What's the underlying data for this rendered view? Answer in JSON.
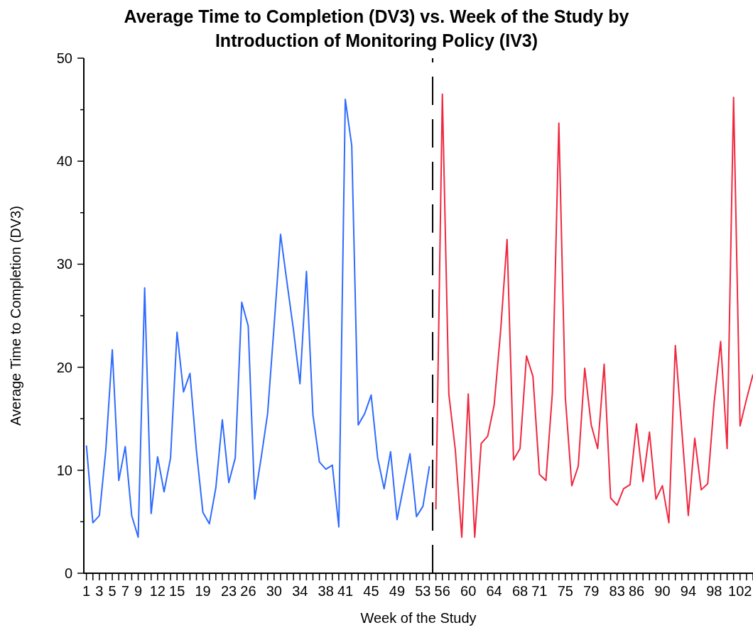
{
  "chart_data": {
    "type": "line",
    "title": "Average Time to Completion (DV3) vs. Week of the Study by Introduction of Monitoring Policy (IV3)",
    "xlabel": "Week of the Study",
    "ylabel": "Average Time to Completion (DV3)",
    "series": [
      {
        "color": "#2f6bff",
        "line_style": "solid",
        "x": [
          1,
          2,
          3,
          4,
          5,
          6,
          7,
          8,
          9,
          10,
          11,
          12,
          13,
          14,
          15,
          16,
          17,
          18,
          19,
          20,
          21,
          22,
          23,
          24,
          25,
          26,
          27,
          28,
          29,
          30,
          31,
          32,
          33,
          34,
          35,
          36,
          37,
          38,
          39,
          40,
          41,
          42,
          43,
          44,
          45,
          46,
          47,
          48,
          49,
          50,
          51,
          52,
          53,
          54
        ],
        "values": [
          12.4,
          4.9,
          5.6,
          12.0,
          21.7,
          9.0,
          12.3,
          5.6,
          3.5,
          27.7,
          5.8,
          11.3,
          7.9,
          11.2,
          23.4,
          17.6,
          19.4,
          11.9,
          5.9,
          4.8,
          8.3,
          14.9,
          8.8,
          11.2,
          26.3,
          24.0,
          7.2,
          11.2,
          15.5,
          24.0,
          32.9,
          28.2,
          23.6,
          18.4,
          29.3,
          15.4,
          10.8,
          10.1,
          10.5,
          4.5,
          46.0,
          41.5,
          14.4,
          15.5,
          17.3,
          11.2,
          8.2,
          11.8,
          5.2,
          8.4,
          11.6,
          5.5,
          6.5,
          10.4
        ]
      },
      {
        "color": "#f0283f",
        "line_style": "solid",
        "x": [
          55,
          56,
          57,
          58,
          59,
          60,
          61,
          62,
          63,
          64,
          65,
          66,
          67,
          68,
          69,
          70,
          71,
          72,
          73,
          74,
          75,
          76,
          77,
          78,
          79,
          80,
          81,
          82,
          83,
          84,
          85,
          86,
          87,
          88,
          89,
          90,
          91,
          92,
          93,
          94,
          95,
          96,
          97,
          98,
          99,
          100,
          101,
          102,
          103,
          104
        ],
        "values": [
          6.2,
          46.5,
          17.4,
          12.0,
          3.5,
          17.4,
          3.5,
          12.6,
          13.3,
          16.3,
          23.5,
          32.4,
          11.0,
          12.1,
          21.1,
          19.1,
          9.6,
          9.0,
          17.5,
          43.7,
          17.1,
          8.5,
          10.4,
          19.9,
          14.4,
          12.1,
          20.3,
          7.3,
          6.6,
          8.2,
          8.6,
          14.5,
          8.9,
          13.7,
          7.2,
          8.5,
          4.9,
          22.1,
          13.9,
          5.6,
          13.1,
          8.1,
          8.7,
          16.6,
          22.5,
          12.1,
          46.2,
          14.3,
          16.9,
          19.3
        ]
      }
    ],
    "xlim": [
      0.6,
      104
    ],
    "xticks": [
      1,
      {
        "value": 2,
        "label": null
      },
      3,
      {
        "value": 4,
        "label": null
      },
      5,
      {
        "value": 6,
        "label": null
      },
      7,
      {
        "value": 8,
        "label": null
      },
      9,
      {
        "value": 10,
        "label": null
      },
      {
        "value": 11,
        "label": null
      },
      12,
      {
        "value": 13,
        "label": null
      },
      {
        "value": 14,
        "label": null
      },
      15,
      {
        "value": 16,
        "label": null
      },
      {
        "value": 17,
        "label": null
      },
      {
        "value": 18,
        "label": null
      },
      19,
      {
        "value": 20,
        "label": null
      },
      {
        "value": 21,
        "label": null
      },
      {
        "value": 22,
        "label": null
      },
      23,
      {
        "value": 24,
        "label": null
      },
      {
        "value": 25,
        "label": null
      },
      26,
      {
        "value": 27,
        "label": null
      },
      {
        "value": 28,
        "label": null
      },
      {
        "value": 29,
        "label": null
      },
      30,
      {
        "value": 31,
        "label": null
      },
      {
        "value": 32,
        "label": null
      },
      {
        "value": 33,
        "label": null
      },
      34,
      {
        "value": 35,
        "label": null
      },
      {
        "value": 36,
        "label": null
      },
      {
        "value": 37,
        "label": null
      },
      38,
      {
        "value": 39,
        "label": null
      },
      {
        "value": 40,
        "label": null
      },
      41,
      {
        "value": 42,
        "label": null
      },
      {
        "value": 43,
        "label": null
      },
      {
        "value": 44,
        "label": null
      },
      45,
      {
        "value": 46,
        "label": null
      },
      {
        "value": 47,
        "label": null
      },
      {
        "value": 48,
        "label": null
      },
      49,
      {
        "value": 50,
        "label": null
      },
      {
        "value": 51,
        "label": null
      },
      {
        "value": 52,
        "label": null
      },
      53,
      {
        "value": 54,
        "label": null
      },
      {
        "value": 55,
        "label": null
      },
      56,
      {
        "value": 57,
        "label": null
      },
      {
        "value": 58,
        "label": null
      },
      {
        "value": 59,
        "label": null
      },
      60,
      {
        "value": 61,
        "label": null
      },
      {
        "value": 62,
        "label": null
      },
      {
        "value": 63,
        "label": null
      },
      64,
      {
        "value": 65,
        "label": null
      },
      {
        "value": 66,
        "label": null
      },
      {
        "value": 67,
        "label": null
      },
      68,
      {
        "value": 69,
        "label": null
      },
      {
        "value": 70,
        "label": null
      },
      71,
      {
        "value": 72,
        "label": null
      },
      {
        "value": 73,
        "label": null
      },
      {
        "value": 74,
        "label": null
      },
      75,
      {
        "value": 76,
        "label": null
      },
      {
        "value": 77,
        "label": null
      },
      {
        "value": 78,
        "label": null
      },
      79,
      {
        "value": 80,
        "label": null
      },
      {
        "value": 81,
        "label": null
      },
      {
        "value": 82,
        "label": null
      },
      83,
      {
        "value": 84,
        "label": null
      },
      {
        "value": 85,
        "label": null
      },
      86,
      {
        "value": 87,
        "label": null
      },
      {
        "value": 88,
        "label": null
      },
      {
        "value": 89,
        "label": null
      },
      90,
      {
        "value": 91,
        "label": null
      },
      {
        "value": 92,
        "label": null
      },
      {
        "value": 93,
        "label": null
      },
      94,
      {
        "value": 95,
        "label": null
      },
      {
        "value": 96,
        "label": null
      },
      {
        "value": 97,
        "label": null
      },
      98,
      {
        "value": 99,
        "label": null
      },
      {
        "value": 100,
        "label": null
      },
      {
        "value": 101,
        "label": null
      },
      102,
      {
        "value": 103,
        "label": null
      },
      {
        "value": 104,
        "label": null
      }
    ],
    "ylim": [
      0,
      50
    ],
    "yticks": [
      0,
      {
        "value": 5,
        "label": null
      },
      10,
      {
        "value": 15,
        "label": null
      },
      20,
      {
        "value": 25,
        "label": null
      },
      30,
      {
        "value": 35,
        "label": null
      },
      40,
      {
        "value": 45,
        "label": null
      },
      50
    ],
    "ref_lines": [
      {
        "axis": "x",
        "value": 54.5,
        "color": "#000000",
        "line_style": "dashed"
      }
    ],
    "grid": false,
    "legend": false
  }
}
